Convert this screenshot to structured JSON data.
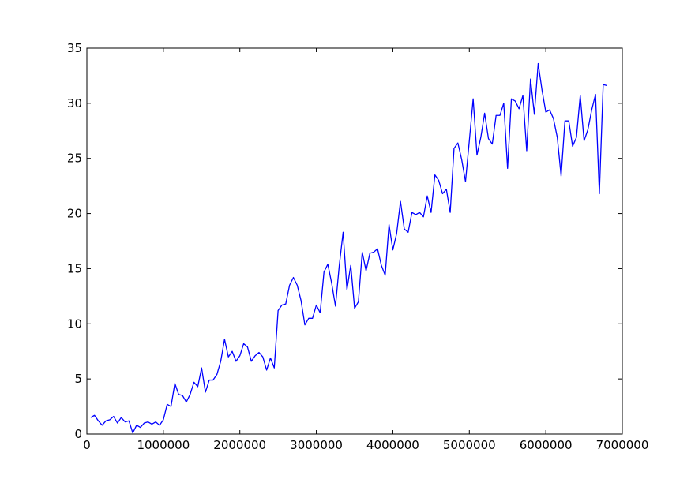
{
  "chart_data": {
    "type": "line",
    "title": "",
    "xlabel": "",
    "ylabel": "",
    "xlim": [
      0,
      7000000
    ],
    "ylim": [
      0,
      35
    ],
    "grid": false,
    "legend": "none",
    "line_color": "#0000ff",
    "xticks": [
      0,
      1000000,
      2000000,
      3000000,
      4000000,
      5000000,
      6000000,
      7000000
    ],
    "xtick_labels": [
      "0",
      "1000000",
      "2000000",
      "3000000",
      "4000000",
      "5000000",
      "6000000",
      "7000000"
    ],
    "yticks": [
      0,
      5,
      10,
      15,
      20,
      25,
      30,
      35
    ],
    "ytick_labels": [
      "0",
      "5",
      "10",
      "15",
      "20",
      "25",
      "30",
      "35"
    ],
    "series": [
      {
        "x": [
          50000,
          100000,
          150000,
          200000,
          250000,
          300000,
          350000,
          400000,
          450000,
          500000,
          550000,
          600000,
          650000,
          700000,
          750000,
          800000,
          850000,
          900000,
          950000,
          1000000,
          1050000,
          1100000,
          1150000,
          1200000,
          1250000,
          1300000,
          1350000,
          1400000,
          1450000,
          1500000,
          1550000,
          1600000,
          1650000,
          1700000,
          1750000,
          1800000,
          1850000,
          1900000,
          1950000,
          2000000,
          2050000,
          2100000,
          2150000,
          2200000,
          2250000,
          2300000,
          2350000,
          2400000,
          2450000,
          2500000,
          2550000,
          2600000,
          2650000,
          2700000,
          2750000,
          2800000,
          2850000,
          2900000,
          2950000,
          3000000,
          3050000,
          3100000,
          3150000,
          3200000,
          3250000,
          3300000,
          3350000,
          3400000,
          3450000,
          3500000,
          3550000,
          3600000,
          3650000,
          3700000,
          3750000,
          3800000,
          3850000,
          3900000,
          3950000,
          4000000,
          4050000,
          4100000,
          4150000,
          4200000,
          4250000,
          4300000,
          4350000,
          4400000,
          4450000,
          4500000,
          4550000,
          4600000,
          4650000,
          4700000,
          4750000,
          4800000,
          4850000,
          4900000,
          4950000,
          5000000,
          5050000,
          5100000,
          5150000,
          5200000,
          5250000,
          5300000,
          5350000,
          5400000,
          5450000,
          5500000,
          5550000,
          5600000,
          5650000,
          5700000,
          5750000,
          5800000,
          5850000,
          5900000,
          5950000,
          6000000,
          6050000,
          6100000,
          6150000,
          6200000,
          6250000,
          6300000,
          6350000,
          6400000,
          6450000,
          6500000,
          6550000,
          6600000,
          6650000,
          6700000,
          6750000,
          6800000
        ],
        "y": [
          1.5,
          1.7,
          1.2,
          0.8,
          1.2,
          1.3,
          1.6,
          1.0,
          1.5,
          1.1,
          1.2,
          0.1,
          0.8,
          0.6,
          1.0,
          1.1,
          0.9,
          1.1,
          0.8,
          1.3,
          2.7,
          2.5,
          4.6,
          3.6,
          3.5,
          2.9,
          3.6,
          4.7,
          4.3,
          6.0,
          3.8,
          4.9,
          4.9,
          5.4,
          6.6,
          8.6,
          7.0,
          7.5,
          6.6,
          7.1,
          8.2,
          7.9,
          6.6,
          7.1,
          7.4,
          7.0,
          5.8,
          6.9,
          6.0,
          11.2,
          11.7,
          11.8,
          13.5,
          14.2,
          13.5,
          12.1,
          9.9,
          10.5,
          10.5,
          11.7,
          11.0,
          14.7,
          15.4,
          13.7,
          11.6,
          15.3,
          18.3,
          13.1,
          15.3,
          11.4,
          12.0,
          16.5,
          14.8,
          16.4,
          16.5,
          16.8,
          15.3,
          14.4,
          19.0,
          16.7,
          18.2,
          21.1,
          18.6,
          18.3,
          20.1,
          19.9,
          20.1,
          19.7,
          21.6,
          20.1,
          23.5,
          23.0,
          21.8,
          22.2,
          20.1,
          25.9,
          26.4,
          24.9,
          22.9,
          26.6,
          30.4,
          25.3,
          26.9,
          29.1,
          26.8,
          26.3,
          28.9,
          28.9,
          30.0,
          24.1,
          30.4,
          30.2,
          29.5,
          30.7,
          25.7,
          32.2,
          29.0,
          33.6,
          31.2,
          29.2,
          29.4,
          28.6,
          26.9,
          23.4,
          28.4,
          28.4,
          26.1,
          26.9,
          30.7,
          26.6,
          27.6,
          29.4,
          30.8,
          21.8,
          31.7,
          31.6
        ]
      }
    ]
  }
}
